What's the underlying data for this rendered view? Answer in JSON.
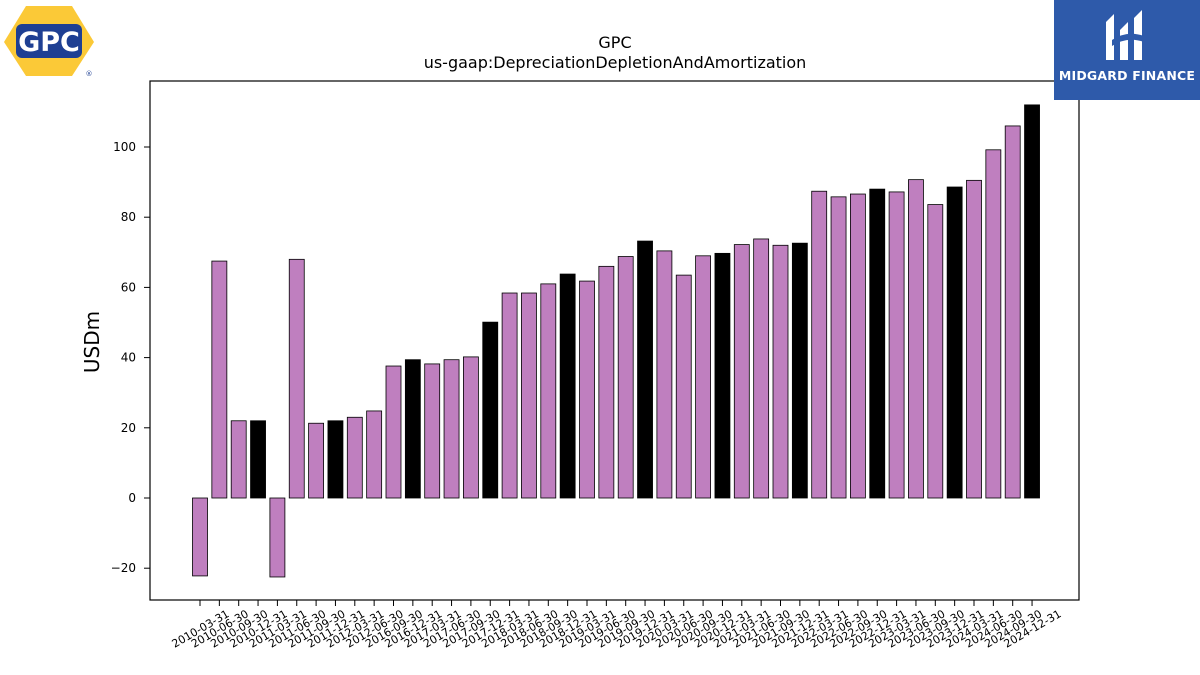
{
  "logos": {
    "left": {
      "text": "GPC",
      "registered": "®"
    },
    "right": {
      "text": "MIDGARD FINANCE"
    }
  },
  "colors": {
    "bar": "#bf7fbf",
    "bar_highlight": "#000000",
    "edge": "#000000",
    "logo_yellow": "#fbc937",
    "logo_blue": "#1e3f93",
    "midgard_bg": "#2e5aaa"
  },
  "chart_data": {
    "type": "bar",
    "title": "GPC",
    "subtitle": "us-gaap:DepreciationDepletionAndAmortization",
    "xlabel": "",
    "ylabel": "USDm",
    "ylim": [
      -30,
      118
    ],
    "yticks": [
      -20,
      0,
      20,
      40,
      60,
      80,
      100
    ],
    "grid": false,
    "legend": "none",
    "categories": [
      "2010-03-31",
      "2010-06-30",
      "2010-09-30",
      "2010-12-31",
      "2011-03-31",
      "2011-06-30",
      "2011-09-30",
      "2011-12-31",
      "2012-03-31",
      "2012-06-30",
      "2016-09-30",
      "2016-12-31",
      "2017-03-31",
      "2017-06-30",
      "2017-09-30",
      "2017-12-31",
      "2018-03-31",
      "2018-06-30",
      "2018-09-30",
      "2018-12-31",
      "2019-03-31",
      "2019-06-30",
      "2019-09-30",
      "2019-12-31",
      "2020-03-31",
      "2020-06-30",
      "2020-09-30",
      "2020-12-31",
      "2021-03-31",
      "2021-06-30",
      "2021-09-30",
      "2021-12-31",
      "2022-03-31",
      "2022-06-30",
      "2022-09-30",
      "2022-12-31",
      "2023-03-31",
      "2023-06-30",
      "2023-09-30",
      "2023-12-31",
      "2024-03-31",
      "2024-06-30",
      "2024-09-30",
      "2024-12-31"
    ],
    "values": [
      -22.2,
      67.5,
      22,
      22,
      -22.5,
      68,
      21.3,
      22,
      23,
      24.8,
      37.6,
      39.4,
      38.2,
      39.4,
      40.2,
      50.1,
      58.4,
      58.4,
      61,
      63.8,
      61.8,
      66,
      68.8,
      73.2,
      70.4,
      63.5,
      69,
      69.7,
      72.2,
      73.8,
      72,
      72.6,
      87.4,
      85.8,
      86.6,
      88,
      87.2,
      90.7,
      83.6,
      88.6,
      90.5,
      99.2,
      106,
      112
    ],
    "highlight": [
      false,
      false,
      false,
      true,
      false,
      false,
      false,
      true,
      false,
      false,
      false,
      true,
      false,
      false,
      false,
      true,
      false,
      false,
      false,
      true,
      false,
      false,
      false,
      true,
      false,
      false,
      false,
      true,
      false,
      false,
      false,
      true,
      false,
      false,
      false,
      true,
      false,
      false,
      false,
      true,
      false,
      false,
      false,
      true
    ]
  }
}
